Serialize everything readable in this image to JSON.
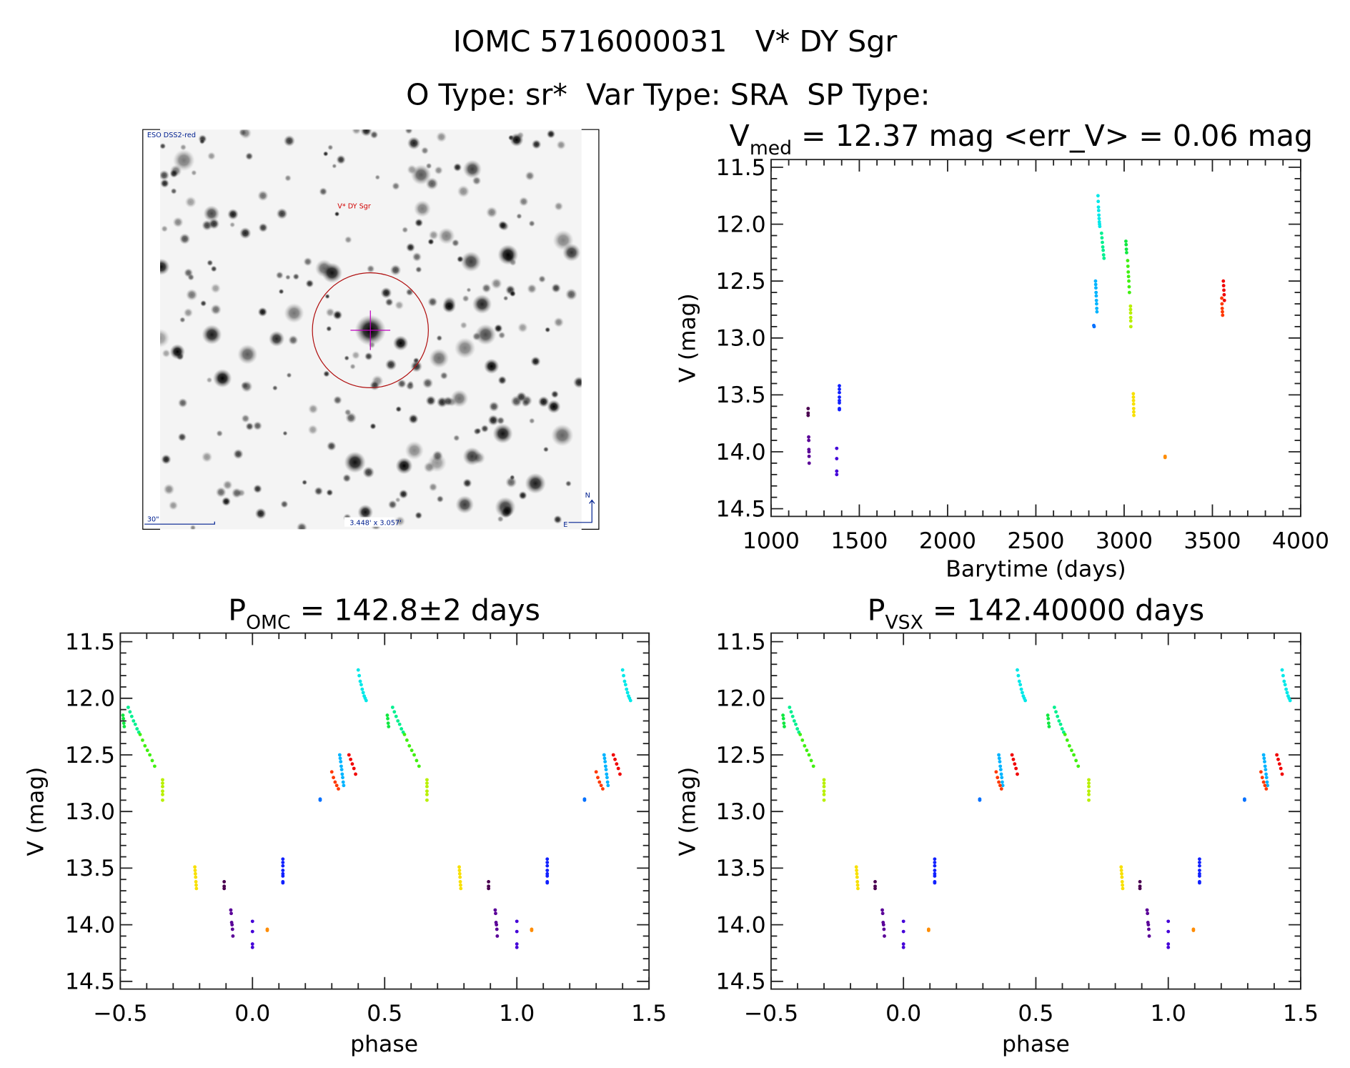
{
  "header": {
    "title": "IOMC 5716000031   V* DY Sgr",
    "subtitle": "O Type: sr*  Var Type: SRA  SP Type:"
  },
  "image_panel": {
    "survey_label": "ESO DSS2-red",
    "target_label": "V* DY Sgr",
    "scale_label": "30\"",
    "fov_label": "3.448' x 3.057'",
    "north_label": "N",
    "east_label": "E"
  },
  "chart_data": [
    {
      "id": "lightcurve",
      "type": "scatter",
      "title_main": "V",
      "title_sub": "med",
      "title_rest": " = 12.37 mag <err_V> = 0.06 mag",
      "xlabel": "Barytime (days)",
      "ylabel": "V (mag)",
      "xlim": [
        1000,
        4000
      ],
      "ylim": [
        14.5,
        11.5
      ],
      "xticks": [
        "1000",
        "1500",
        "2000",
        "2500",
        "3000",
        "3500",
        "4000"
      ],
      "yticks": [
        "11.5",
        "12.0",
        "12.5",
        "13.0",
        "13.5",
        "14.0",
        "14.5"
      ]
    },
    {
      "id": "phase_omc",
      "type": "scatter",
      "title_main": "P",
      "title_sub": "OMC",
      "title_rest": " = 142.8±2 days",
      "period_days": 142.8,
      "xlabel": "phase",
      "ylabel": "V (mag)",
      "xlim": [
        -0.5,
        1.5
      ],
      "ylim": [
        14.5,
        11.5
      ],
      "xticks": [
        "−0.5",
        "0.0",
        "0.5",
        "1.0",
        "1.5"
      ],
      "yticks": [
        "11.5",
        "12.0",
        "12.5",
        "13.0",
        "13.5",
        "14.0",
        "14.5"
      ]
    },
    {
      "id": "phase_vsx",
      "type": "scatter",
      "title_main": "P",
      "title_sub": "VSX",
      "title_rest": " = 142.40000 days",
      "period_days": 142.4,
      "xlabel": "phase",
      "ylabel": "V (mag)",
      "xlim": [
        -0.5,
        1.5
      ],
      "ylim": [
        14.5,
        11.5
      ],
      "xticks": [
        "−0.5",
        "0.0",
        "0.5",
        "1.0",
        "1.5"
      ],
      "yticks": [
        "11.5",
        "12.0",
        "12.5",
        "13.0",
        "13.5",
        "14.0",
        "14.5"
      ]
    }
  ],
  "observations": [
    {
      "color": "#4a0050",
      "t": [
        1210,
        1210
      ],
      "phase_omc": [
        -0.107,
        -0.107
      ],
      "phase_vsx": [
        -0.107,
        -0.107
      ],
      "mags": [
        13.62,
        13.66,
        13.68
      ]
    },
    {
      "color": "#5a0098",
      "t": [
        1213,
        1216
      ],
      "phase_omc": [
        -0.082,
        -0.074
      ],
      "phase_vsx": [
        -0.08,
        -0.072
      ],
      "mags": [
        13.87,
        13.9,
        13.98,
        14.0,
        14.04,
        14.1
      ]
    },
    {
      "color": "#4400d8",
      "t": [
        1372,
        1372
      ],
      "phase_omc": [
        0.0,
        0.0
      ],
      "phase_vsx": [
        0.0,
        0.0
      ],
      "mags": [
        13.97,
        14.06,
        14.17,
        14.2
      ]
    },
    {
      "color": "#1020ff",
      "t": [
        1387,
        1387
      ],
      "phase_omc": [
        0.115,
        0.115
      ],
      "phase_vsx": [
        0.118,
        0.118
      ],
      "mags": [
        13.42,
        13.45,
        13.48,
        13.52,
        13.55,
        13.57,
        13.62,
        13.63
      ]
    },
    {
      "color": "#0070ff",
      "t": [
        2828,
        2830
      ],
      "phase_omc": [
        0.256,
        0.256
      ],
      "phase_vsx": [
        0.288,
        0.288
      ],
      "mags": [
        12.89,
        12.9
      ]
    },
    {
      "color": "#00b4ff",
      "t": [
        2838,
        2846
      ],
      "phase_omc": [
        0.33,
        0.345
      ],
      "phase_vsx": [
        0.36,
        0.375
      ],
      "mags": [
        12.5,
        12.53,
        12.56,
        12.6,
        12.63,
        12.67,
        12.7,
        12.74,
        12.77
      ]
    },
    {
      "color": "#00e8e8",
      "t": [
        2852,
        2862
      ],
      "phase_omc": [
        0.4,
        0.43
      ],
      "phase_vsx": [
        0.43,
        0.46
      ],
      "mags": [
        11.75,
        11.8,
        11.85,
        11.88,
        11.92,
        11.95,
        11.98,
        12.0,
        12.02
      ]
    },
    {
      "color": "#00f090",
      "t": [
        2872,
        2886
      ],
      "phase_omc": [
        -0.47,
        -0.43
      ],
      "phase_vsx": [
        -0.43,
        -0.395
      ],
      "mags": [
        12.08,
        12.12,
        12.16,
        12.2,
        12.23,
        12.27,
        12.3
      ]
    },
    {
      "color": "#10e840",
      "t": [
        3010,
        3014
      ],
      "phase_omc": [
        -0.49,
        -0.485
      ],
      "phase_vsx": [
        -0.455,
        -0.45
      ],
      "mags": [
        12.15,
        12.18,
        12.22,
        12.25
      ]
    },
    {
      "color": "#40f010",
      "t": [
        3020,
        3030
      ],
      "phase_omc": [
        -0.425,
        -0.37
      ],
      "phase_vsx": [
        -0.39,
        -0.34
      ],
      "mags": [
        12.32,
        12.37,
        12.42,
        12.46,
        12.5,
        12.55,
        12.6
      ]
    },
    {
      "color": "#b8f000",
      "t": [
        3036,
        3038
      ],
      "phase_omc": [
        -0.34,
        -0.34
      ],
      "phase_vsx": [
        -0.3,
        -0.3
      ],
      "mags": [
        12.72,
        12.75,
        12.78,
        12.82,
        12.85,
        12.9
      ]
    },
    {
      "color": "#f8e000",
      "t": [
        3052,
        3055
      ],
      "phase_omc": [
        -0.218,
        -0.212
      ],
      "phase_vsx": [
        -0.178,
        -0.172
      ],
      "mags": [
        13.49,
        13.52,
        13.55,
        13.58,
        13.62,
        13.65,
        13.68
      ]
    },
    {
      "color": "#ff8c00",
      "t": [
        3232,
        3232
      ],
      "phase_omc": [
        0.056,
        0.056
      ],
      "phase_vsx": [
        0.095,
        0.095
      ],
      "mags": [
        14.04,
        14.05
      ]
    },
    {
      "color": "#ff3800",
      "t": [
        3553,
        3558
      ],
      "phase_omc": [
        0.3,
        0.325
      ],
      "phase_vsx": [
        0.35,
        0.37
      ],
      "mags": [
        12.65,
        12.7,
        12.74,
        12.77,
        12.8
      ]
    },
    {
      "color": "#f00000",
      "t": [
        3562,
        3568
      ],
      "phase_omc": [
        0.365,
        0.39
      ],
      "phase_vsx": [
        0.41,
        0.43
      ],
      "mags": [
        12.5,
        12.54,
        12.58,
        12.62,
        12.67
      ]
    }
  ]
}
